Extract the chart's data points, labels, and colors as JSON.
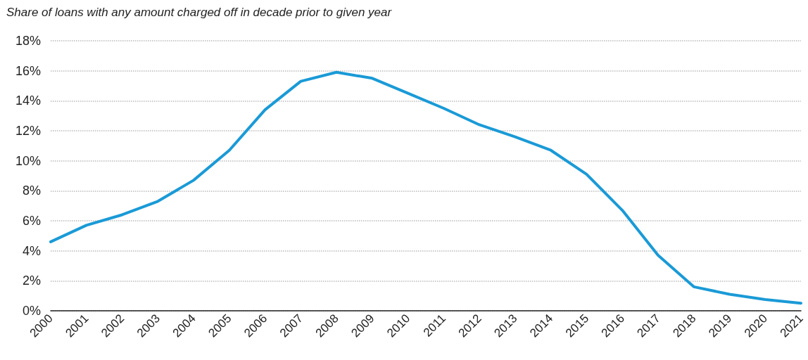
{
  "chart_data": {
    "type": "line",
    "title": "Share of loans with any amount charged off in decade prior to given year",
    "categories": [
      "2000",
      "2001",
      "2002",
      "2003",
      "2004",
      "2005",
      "2006",
      "2007",
      "2008",
      "2009",
      "2010",
      "2011",
      "2012",
      "2013",
      "2014",
      "2015",
      "2016",
      "2017",
      "2018",
      "2019",
      "2020",
      "2021"
    ],
    "series": [
      {
        "color": "#1a9ad6",
        "values": [
          4.6,
          5.7,
          6.4,
          7.3,
          8.7,
          10.7,
          13.4,
          15.3,
          15.9,
          15.5,
          14.5,
          13.5,
          12.4,
          11.6,
          10.7,
          9.1,
          6.7,
          3.7,
          1.6,
          1.1,
          0.75,
          0.5
        ]
      }
    ],
    "ylim": [
      0,
      18
    ],
    "yticks": [
      {
        "value": 0,
        "label": "0%"
      },
      {
        "value": 2,
        "label": "2%"
      },
      {
        "value": 4,
        "label": "4%"
      },
      {
        "value": 6,
        "label": "6%"
      },
      {
        "value": 8,
        "label": "8%"
      },
      {
        "value": 10,
        "label": "10%"
      },
      {
        "value": 12,
        "label": "12%"
      },
      {
        "value": 14,
        "label": "14%"
      },
      {
        "value": 16,
        "label": "16%"
      },
      {
        "value": 18,
        "label": "18%"
      }
    ],
    "grid": "y",
    "marker": "none",
    "line_style": "solid"
  }
}
